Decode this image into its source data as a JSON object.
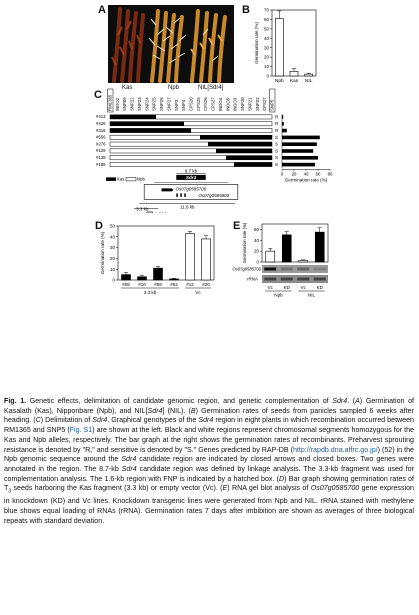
{
  "panel_a": {
    "label": "A",
    "labels": [
      "Kas",
      "Npb",
      "NIL[Sdr4]"
    ]
  },
  "panel_b": {
    "label": "B",
    "ylabel": "Germination rate (%)",
    "yticks": [
      "0",
      "10",
      "20",
      "30",
      "40",
      "50",
      "60",
      "70"
    ]
  },
  "panel_c": {
    "label": "C",
    "markers": [
      "RM1365",
      "INDO2",
      "SNP09",
      "SNP22",
      "SNP23",
      "SNP24",
      "SNP25",
      "SNP26",
      "SNP27",
      "SNP3",
      "SNP4",
      "CPS20",
      "CPS25",
      "CPS26",
      "CPS27",
      "INDO4",
      "INDO5",
      "INDO3",
      "SNP20",
      "SNP21",
      "SNP22",
      "CPS27",
      "SNP5"
    ],
    "boxed_markers": [
      0,
      22
    ],
    "lines": [
      "#413",
      "#426",
      "#318",
      "#556",
      "#276",
      "#129",
      "#139",
      "#189"
    ],
    "rs": [
      "R",
      "R",
      "R",
      "S",
      "S",
      "S",
      "S",
      "S"
    ],
    "size_8_7": "8.7 kb",
    "gene_name": "Sdr4",
    "legend_kas": "Kas",
    "legend_npb": "Npb",
    "gene1": "Os07g0585700",
    "gene2": "Os07g0585800",
    "size_11_6": "11.6 kb",
    "size_3_3": "3.3 kb",
    "size_1_6": "1.6 kb",
    "xlabel": "Germination rate (%)",
    "xticks": [
      "0",
      "20",
      "40",
      "60",
      "80"
    ]
  },
  "panel_d": {
    "label": "D",
    "ylabel": "Germination rate (%)",
    "yticks": [
      "0",
      "10",
      "20",
      "30",
      "40",
      "50"
    ],
    "group1": "3.3 kb",
    "group2": "Vc"
  },
  "panel_e": {
    "label": "E",
    "ylabel": "Germination rate (%)",
    "yticks": [
      "0",
      "20",
      "40",
      "60"
    ],
    "blot1": "Os07g0585700",
    "blot2": "rRNA",
    "group1": "Npb",
    "group2": "NIL"
  },
  "chart_data": [
    {
      "type": "bar",
      "title": "",
      "categories": [
        "Npb",
        "Kas",
        "NIL"
      ],
      "values": [
        61,
        5,
        2
      ],
      "ylabel": "Germination rate (%)",
      "ylim": [
        0,
        70
      ]
    },
    {
      "type": "bar",
      "title": "",
      "categories": [
        "#413",
        "#426",
        "#318",
        "#556",
        "#276",
        "#129",
        "#139",
        "#189"
      ],
      "values": [
        2,
        3,
        8,
        63,
        58,
        52,
        60,
        55
      ],
      "xlabel": "Germination rate (%)",
      "xlim": [
        0,
        80
      ],
      "orientation": "horizontal"
    },
    {
      "type": "bar",
      "title": "",
      "categories": [
        "#08",
        "#10",
        "#59",
        "#62",
        "#12",
        "#20"
      ],
      "values": [
        5,
        3,
        11,
        1,
        43,
        38
      ],
      "ylabel": "Germination rate (%)",
      "ylim": [
        0,
        50
      ]
    },
    {
      "type": "bar",
      "title": "",
      "categories": [
        "Vc",
        "KD",
        "Vc",
        "KD"
      ],
      "values": [
        20,
        50,
        3,
        55
      ],
      "ylabel": "Germination rate (%)",
      "ylim": [
        0,
        70
      ]
    }
  ],
  "caption": {
    "fig": "Fig. 1.",
    "s1": " Genetic effects, delimitation of candidate genomic region, and genetic complementation of ",
    "sdr4_a": "Sdr4",
    "s2": ". (",
    "a": "A",
    "s3": ") Germination of Kasalath (Kas), Nipponbare (Npb), and NIL[",
    "sdr4_b": "Sdr4",
    "s4": "] (NIL). (",
    "b": "B",
    "s5": ") Germination rates of seeds from panicles sampled 6 weeks after heading. (",
    "c": "C",
    "s6": ") Delimitation of ",
    "sdr4_c": "Sdr4",
    "s7": ". Graphical genotypes of the ",
    "sdr4_d": "Sdr4",
    "s8": " region in eight plants in which recombination occurred between RM1365 and SNP5 (",
    "figs1": "Fig. S1",
    "s9": ") are shown at the left. Black and white regions represent chromosomal segments homozygous for the Kas and Npb alleles, respectively. The bar graph at the right shows the germination rates of recombinants. Preharvest sprouting resistance is denoted by \"R,\" and sensitive is denoted by \"S.\" Genes predicted by RAP-DB (",
    "url": "http://rapdb.dna.affrc.go.jp/",
    "s10": ") (52) in the Npb genomic sequence around the ",
    "sdr4_e": "Sdr4",
    "s11": " candidate region are indicated by closed arrows and closed boxes. Two genes were annotated in the region. The 8.7-kb ",
    "sdr4_f": "Sdr4",
    "s12": " candidate region was defined by linkage analysis. The 3.3-kb fragment was used for complementation analysis. The 1.6-kb region with FNP is indicated by a hatched box. (",
    "d": "D",
    "s13": ") Bar graph showing germination rates of T",
    "sub3": "3",
    "s14": " seeds harboring the Kas fragment (3.3 kb) or empty vector (Vc). (",
    "e": "E",
    "s15": ") RNA gel blot analysis of ",
    "gene": "Os07g0585700",
    "s16": " gene expression in knockdown (KD) and Vc lines. Knockdown transgenic lines were generated from Npb and NIL. rRNA stained with methylene blue shows equal loading of RNAs (rRNA). Germination rates 7 days after imbibition are shown as averages of three biological repeats with standard deviation."
  }
}
